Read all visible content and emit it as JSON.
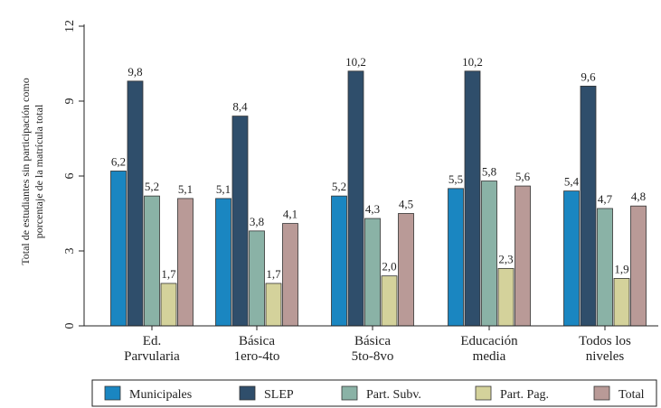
{
  "chart_data": {
    "type": "bar",
    "ylabel_lines": [
      "Total de estudiantes sin participación como",
      "porcentaje de la matrícula total"
    ],
    "ylim": [
      0,
      12
    ],
    "yticks": [
      0,
      3,
      6,
      9,
      12
    ],
    "grid": false,
    "legend_position": "bottom",
    "categories": [
      [
        "Ed.",
        "Parvularia"
      ],
      [
        "Básica",
        "1ero-4to"
      ],
      [
        "Básica",
        "5to-8vo"
      ],
      [
        "Educación",
        "media"
      ],
      [
        "Todos los",
        "niveles"
      ]
    ],
    "series": [
      {
        "name": "Municipales",
        "color": "#1a86c1",
        "values": [
          6.2,
          5.1,
          5.2,
          5.5,
          5.4
        ],
        "labels": [
          "6,2",
          "5,1",
          "5,2",
          "5,5",
          "5,4"
        ]
      },
      {
        "name": "SLEP",
        "color": "#2f4e6b",
        "values": [
          9.8,
          8.4,
          10.2,
          10.2,
          9.6
        ],
        "labels": [
          "9,8",
          "8,4",
          "10,2",
          "10,2",
          "9,6"
        ]
      },
      {
        "name": "Part. Subv.",
        "color": "#8ab2a6",
        "values": [
          5.2,
          3.8,
          4.3,
          5.8,
          4.7
        ],
        "labels": [
          "5,2",
          "3,8",
          "4,3",
          "5,8",
          "4,7"
        ]
      },
      {
        "name": "Part. Pag.",
        "color": "#d4d29b",
        "values": [
          1.7,
          1.7,
          2.0,
          2.3,
          1.9
        ],
        "labels": [
          "1,7",
          "1,7",
          "2,0",
          "2,3",
          "1,9"
        ]
      },
      {
        "name": "Total",
        "color": "#b99a97",
        "values": [
          5.1,
          4.1,
          4.5,
          5.6,
          4.8
        ],
        "labels": [
          "5,1",
          "4,1",
          "4,5",
          "5,6",
          "4,8"
        ]
      }
    ]
  }
}
